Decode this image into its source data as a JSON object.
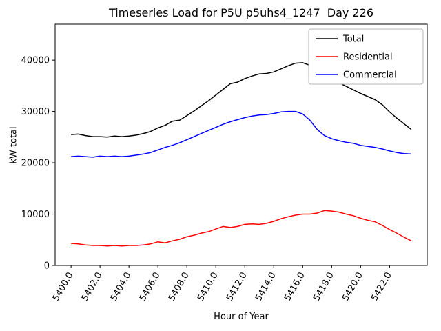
{
  "chart_data": {
    "type": "line",
    "title": "Timeseries Load for P5U p5uhs4_1247  Day 226",
    "xlabel": "Hour of Year",
    "ylabel": "kW total",
    "xlim": [
      5398.9,
      5424.6
    ],
    "ylim": [
      0,
      47000
    ],
    "xticks": [
      5400,
      5402,
      5404,
      5406,
      5408,
      5410,
      5412,
      5414,
      5416,
      5418,
      5420,
      5422
    ],
    "xtick_labels": [
      "5400.0",
      "5402.0",
      "5404.0",
      "5406.0",
      "5408.0",
      "5410.0",
      "5412.0",
      "5414.0",
      "5416.0",
      "5418.0",
      "5420.0",
      "5422.0"
    ],
    "yticks": [
      0,
      10000,
      20000,
      30000,
      40000
    ],
    "ytick_labels": [
      "0",
      "10000",
      "20000",
      "30000",
      "40000"
    ],
    "grid": false,
    "legend_position": "upper right",
    "x": [
      5400.0,
      5400.5,
      5401.0,
      5401.5,
      5402.0,
      5402.5,
      5403.0,
      5403.5,
      5404.0,
      5404.5,
      5405.0,
      5405.5,
      5406.0,
      5406.5,
      5407.0,
      5407.5,
      5408.0,
      5408.5,
      5409.0,
      5409.5,
      5410.0,
      5410.5,
      5411.0,
      5411.5,
      5412.0,
      5412.5,
      5413.0,
      5413.5,
      5414.0,
      5414.5,
      5415.0,
      5415.5,
      5416.0,
      5416.5,
      5417.0,
      5417.5,
      5418.0,
      5418.5,
      5419.0,
      5419.5,
      5420.0,
      5420.5,
      5421.0,
      5421.5,
      5422.0,
      5422.5,
      5423.0,
      5423.5
    ],
    "series": [
      {
        "name": "Total",
        "color": "#000000",
        "values": [
          25500,
          25600,
          25300,
          25100,
          25100,
          25000,
          25200,
          25100,
          25200,
          25400,
          25700,
          26100,
          26800,
          27300,
          28100,
          28300,
          29200,
          30100,
          31100,
          32100,
          33200,
          34300,
          35400,
          35700,
          36400,
          36900,
          37300,
          37400,
          37700,
          38300,
          38900,
          39400,
          39500,
          39000,
          38100,
          36600,
          36200,
          35600,
          34900,
          34200,
          33500,
          32900,
          32300,
          31300,
          29900,
          28700,
          27600,
          26500
        ]
      },
      {
        "name": "Residential",
        "color": "#ff0000",
        "values": [
          4300,
          4200,
          4000,
          3900,
          3900,
          3800,
          3900,
          3800,
          3900,
          3900,
          4000,
          4200,
          4600,
          4400,
          4800,
          5100,
          5600,
          5900,
          6300,
          6600,
          7100,
          7600,
          7400,
          7600,
          8000,
          8100,
          8000,
          8200,
          8600,
          9100,
          9500,
          9800,
          10000,
          10000,
          10200,
          10700,
          10600,
          10400,
          10000,
          9700,
          9200,
          8800,
          8500,
          7800,
          7000,
          6300,
          5500,
          4800
        ]
      },
      {
        "name": "Commercial",
        "color": "#0000ff",
        "values": [
          21200,
          21300,
          21200,
          21100,
          21300,
          21200,
          21300,
          21200,
          21300,
          21500,
          21700,
          22000,
          22500,
          23000,
          23400,
          23900,
          24500,
          25100,
          25700,
          26300,
          26900,
          27500,
          28000,
          28400,
          28800,
          29100,
          29300,
          29400,
          29600,
          29900,
          30000,
          30000,
          29500,
          28300,
          26500,
          25300,
          24700,
          24300,
          24000,
          23800,
          23400,
          23200,
          23000,
          22700,
          22300,
          22000,
          21800,
          21700
        ]
      }
    ]
  }
}
